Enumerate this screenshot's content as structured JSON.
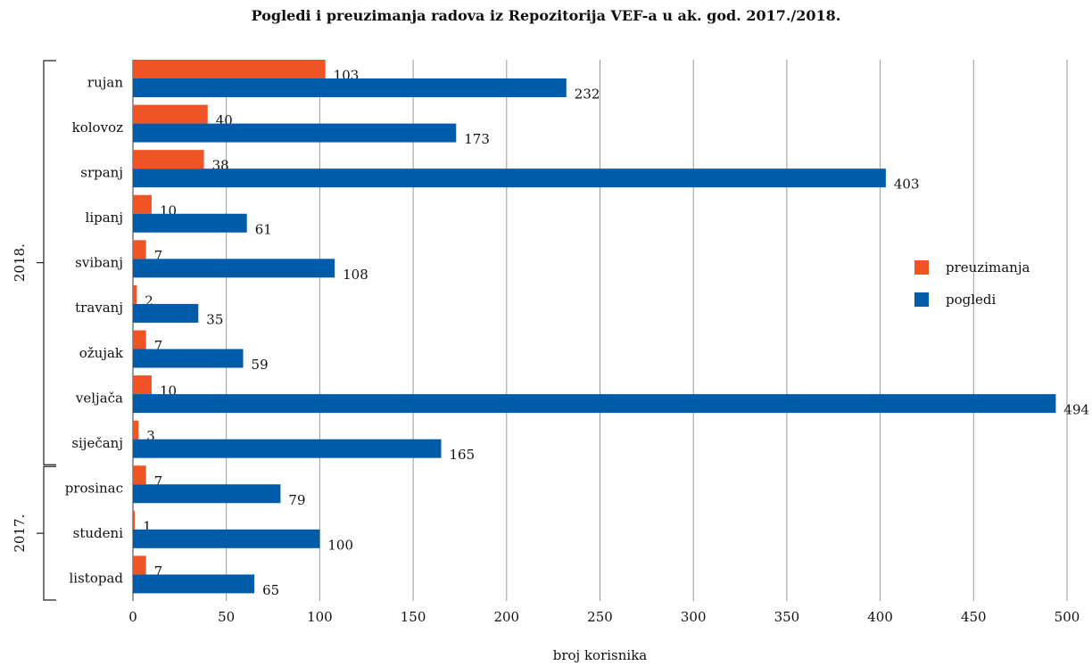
{
  "chart_data": {
    "type": "bar",
    "orientation": "horizontal",
    "title": "Pogledi i preuzimanja radova iz Repozitorija VEF-a u ak. god. 2017./2018.",
    "xlabel": "broj korisnika",
    "ylabel": "",
    "xlim": [
      0,
      500
    ],
    "xticks": [
      0,
      50,
      100,
      150,
      200,
      250,
      300,
      350,
      400,
      450,
      500
    ],
    "grid": true,
    "legend_position": "right",
    "categories": [
      "rujan",
      "kolovoz",
      "srpanj",
      "lipanj",
      "svibanj",
      "travanj",
      "ožujak",
      "veljača",
      "siječanj",
      "prosinac",
      "studeni",
      "listopad"
    ],
    "groups": [
      {
        "name": "2018.",
        "categories": [
          "rujan",
          "kolovoz",
          "srpanj",
          "lipanj",
          "svibanj",
          "travanj",
          "ožujak",
          "veljača",
          "siječanj"
        ]
      },
      {
        "name": "2017.",
        "categories": [
          "prosinac",
          "studeni",
          "listopad"
        ]
      }
    ],
    "series": [
      {
        "name": "preuzimanja",
        "color": "#f05324",
        "values": [
          103,
          40,
          38,
          10,
          7,
          2,
          7,
          10,
          3,
          7,
          1,
          7
        ]
      },
      {
        "name": "pogledi",
        "color": "#005ca9",
        "values": [
          232,
          173,
          403,
          61,
          108,
          35,
          59,
          494,
          165,
          79,
          100,
          65
        ]
      }
    ]
  }
}
